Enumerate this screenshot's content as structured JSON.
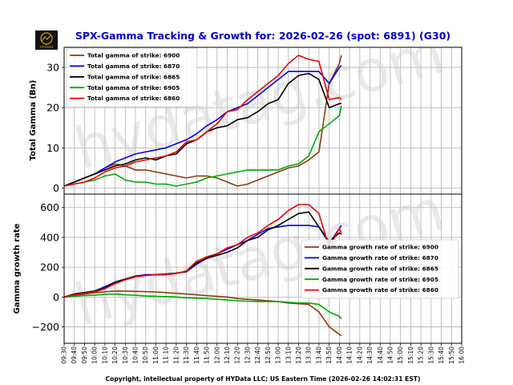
{
  "logo_text": "HYData",
  "watermark_text": "hydatag.com",
  "footer": "Copyright, intellectual property of HYData LLC; US Eastern Time (2026-02-26 14:02:31 EST)",
  "chart_data": [
    {
      "type": "line",
      "title": "SPX-Gamma Tracking & Growth for: 2026-02-26 (spot: 6891) (G30)",
      "ylabel": "Total Gamma (Bn)",
      "xlabel": "",
      "ylim": [
        -1.5,
        35
      ],
      "yticks": [
        0,
        10,
        20,
        30
      ],
      "legend_position": "top-left",
      "x": [
        "09:30",
        "09:40",
        "09:50",
        "10:00",
        "10:10",
        "10:20",
        "10:30",
        "10:40",
        "10:50",
        "11:00",
        "11:10",
        "11:20",
        "11:30",
        "11:40",
        "11:50",
        "12:00",
        "12:10",
        "12:20",
        "12:30",
        "12:40",
        "12:50",
        "13:00",
        "13:10",
        "13:20",
        "13:30",
        "13:40",
        "13:50",
        "14:00",
        "14:02"
      ],
      "series": [
        {
          "name": "Total gamma of strike: 6900",
          "color": "#8b3a0f",
          "values": [
            0.5,
            1.5,
            2.5,
            3.5,
            5,
            6,
            5.5,
            4.5,
            4.5,
            4,
            3.5,
            3,
            2.5,
            3,
            3,
            2.5,
            1.5,
            0.5,
            1,
            2,
            3,
            4,
            5,
            5.5,
            7,
            9,
            26,
            31,
            33
          ]
        },
        {
          "name": "Total gamma of strike: 6870",
          "color": "#0000ee",
          "values": [
            0.5,
            1.5,
            2.5,
            3.5,
            5,
            6.5,
            7.5,
            8.5,
            9,
            9.5,
            10,
            11,
            12,
            13.5,
            15.5,
            17,
            19,
            20,
            21,
            23,
            25,
            27,
            29,
            29,
            29,
            29,
            26,
            30,
            30.5
          ]
        },
        {
          "name": "Total gamma of strike: 6865",
          "color": "#000000",
          "values": [
            0.5,
            1.5,
            2.5,
            3.5,
            4.5,
            5.5,
            6,
            7,
            7.5,
            7,
            8,
            8.5,
            11,
            12,
            14,
            15,
            15.5,
            17,
            17.5,
            19,
            21,
            22,
            26,
            28,
            28.5,
            27,
            20,
            21,
            21
          ]
        },
        {
          "name": "Total gamma of strike: 6905",
          "color": "#00aa00",
          "values": [
            0.5,
            1,
            1.5,
            2,
            3,
            3.5,
            2,
            1.5,
            1.5,
            1,
            1,
            0.5,
            1,
            1.5,
            2.5,
            3,
            3.5,
            4,
            4.5,
            4.5,
            4.5,
            4.5,
            5.5,
            6,
            8,
            14,
            16,
            18,
            20.5
          ]
        },
        {
          "name": "Total gamma of strike: 6860",
          "color": "#ee0000",
          "values": [
            0.5,
            1,
            1.5,
            2.5,
            4,
            5,
            5.5,
            6.5,
            7,
            7.5,
            8,
            9,
            11.5,
            12,
            14,
            16,
            19,
            19.5,
            22,
            24,
            26,
            28,
            31,
            33,
            32,
            31.5,
            22,
            22.5,
            22
          ]
        }
      ]
    },
    {
      "type": "line",
      "title": "",
      "ylabel": "Gamma growth rate",
      "xlabel": "",
      "ylim": [
        -310,
        690
      ],
      "yticks": [
        -200,
        0,
        200,
        400,
        600
      ],
      "legend_position": "right",
      "x": [
        "09:30",
        "09:40",
        "09:50",
        "10:00",
        "10:10",
        "10:20",
        "10:30",
        "10:40",
        "10:50",
        "11:00",
        "11:10",
        "11:20",
        "11:30",
        "11:40",
        "11:50",
        "12:00",
        "12:10",
        "12:20",
        "12:30",
        "12:40",
        "12:50",
        "13:00",
        "13:10",
        "13:20",
        "13:30",
        "13:40",
        "13:50",
        "14:00",
        "14:02"
      ],
      "series": [
        {
          "name": "Gamma growth rate of strike: 6900",
          "color": "#8b3a0f",
          "values": [
            0,
            10,
            20,
            30,
            35,
            40,
            40,
            38,
            36,
            34,
            30,
            25,
            20,
            15,
            10,
            5,
            0,
            -10,
            -15,
            -20,
            -25,
            -30,
            -40,
            -45,
            -50,
            -100,
            -200,
            -250,
            -260
          ]
        },
        {
          "name": "Gamma growth rate of strike: 6870",
          "color": "#0000ee",
          "values": [
            0,
            20,
            30,
            40,
            70,
            100,
            120,
            140,
            150,
            150,
            155,
            160,
            170,
            220,
            260,
            290,
            320,
            350,
            380,
            420,
            460,
            470,
            480,
            480,
            480,
            470,
            360,
            460,
            480
          ]
        },
        {
          "name": "Gamma growth rate of strike: 6865",
          "color": "#000000",
          "values": [
            0,
            20,
            30,
            40,
            60,
            100,
            120,
            140,
            145,
            150,
            150,
            160,
            170,
            230,
            260,
            280,
            300,
            330,
            380,
            400,
            450,
            480,
            520,
            560,
            570,
            470,
            370,
            430,
            420
          ]
        },
        {
          "name": "Gamma growth rate of strike: 6905",
          "color": "#00aa00",
          "values": [
            0,
            5,
            10,
            12,
            18,
            20,
            15,
            12,
            8,
            5,
            3,
            0,
            -5,
            -8,
            -10,
            -15,
            -20,
            -25,
            -28,
            -30,
            -30,
            -30,
            -35,
            -40,
            -40,
            -50,
            -100,
            -130,
            -145
          ]
        },
        {
          "name": "Gamma growth rate of strike: 6860",
          "color": "#ee0000",
          "values": [
            0,
            15,
            25,
            35,
            55,
            90,
            115,
            135,
            145,
            150,
            150,
            158,
            175,
            240,
            270,
            290,
            330,
            350,
            400,
            430,
            480,
            520,
            580,
            620,
            620,
            560,
            330,
            460,
            430
          ]
        }
      ]
    }
  ],
  "x_axis": {
    "ticks": [
      "09:30",
      "09:40",
      "09:50",
      "10:00",
      "10:10",
      "10:20",
      "10:30",
      "10:40",
      "10:50",
      "11:00",
      "11:10",
      "11:20",
      "11:30",
      "11:40",
      "11:50",
      "12:00",
      "12:10",
      "12:20",
      "12:30",
      "12:40",
      "12:50",
      "13:00",
      "13:10",
      "13:20",
      "13:30",
      "13:40",
      "13:50",
      "14:00",
      "14:10",
      "14:20",
      "14:30",
      "14:40",
      "14:50",
      "15:00",
      "15:10",
      "15:20",
      "15:30",
      "15:40",
      "15:50",
      "16:00"
    ]
  }
}
